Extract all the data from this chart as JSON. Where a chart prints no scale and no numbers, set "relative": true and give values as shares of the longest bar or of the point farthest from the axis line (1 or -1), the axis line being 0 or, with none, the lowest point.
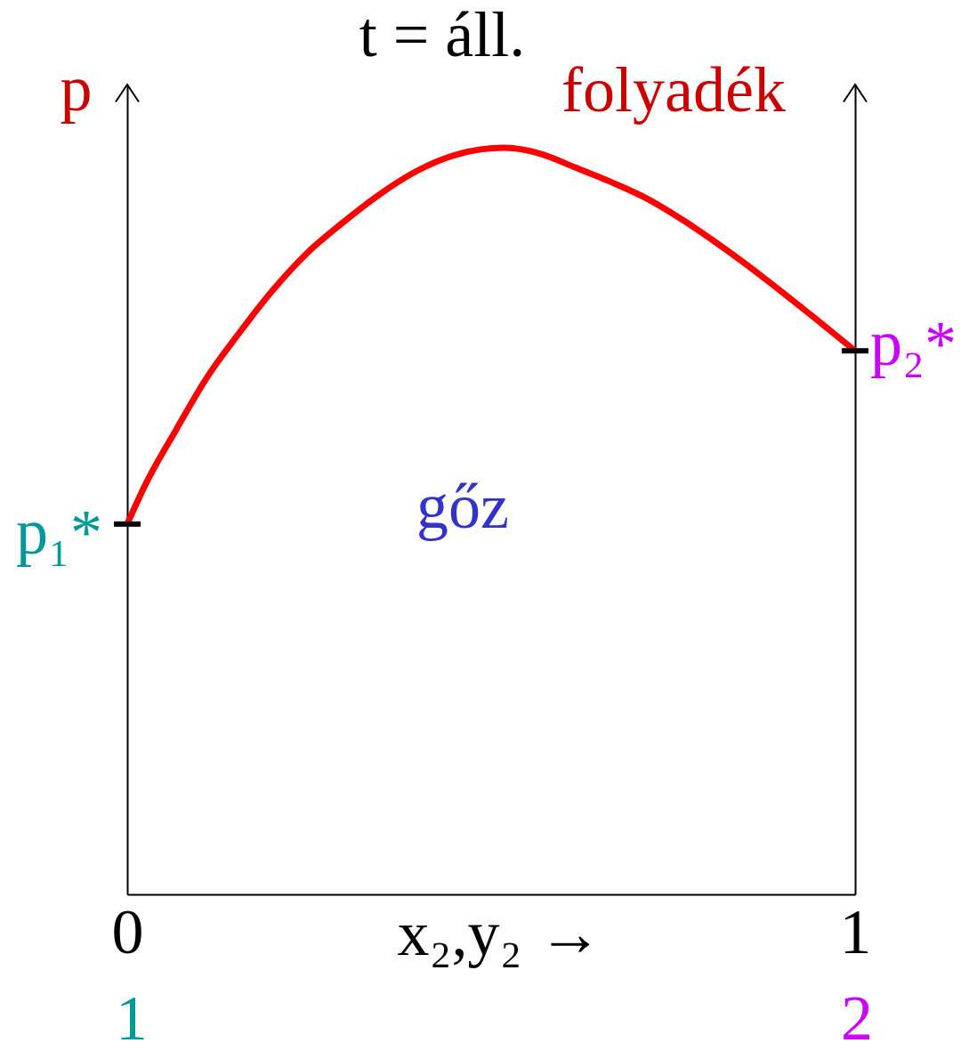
{
  "chart_data": {
    "type": "line",
    "title": "t = áll.",
    "xlabel": "x₂,y₂ →",
    "ylabel": "p",
    "relative": true,
    "x": [
      0,
      0.025,
      0.067,
      0.108,
      0.15,
      0.198,
      0.246,
      0.294,
      0.343,
      0.398,
      0.453,
      0.518,
      0.571,
      0.612,
      0.665,
      0.714,
      0.762,
      0.819,
      0.877,
      0.938,
      1
    ],
    "series": [
      {
        "color": "#ff0000",
        "values": [
          0.496,
          0.549,
          0.622,
          0.69,
          0.747,
          0.807,
          0.858,
          0.898,
          0.935,
          0.969,
          0.991,
          1,
          0.991,
          0.975,
          0.954,
          0.932,
          0.904,
          0.866,
          0.824,
          0.777,
          0.728
        ]
      }
    ],
    "xlim": [
      0,
      1
    ],
    "xticks": [
      0,
      1
    ],
    "annotations": [
      "folyadék",
      "gőz",
      {
        "text": "p₁*",
        "x": 0,
        "y": 0.496
      },
      {
        "text": "p₂*",
        "x": 1,
        "y": 0.728
      },
      "1",
      "2"
    ]
  }
}
